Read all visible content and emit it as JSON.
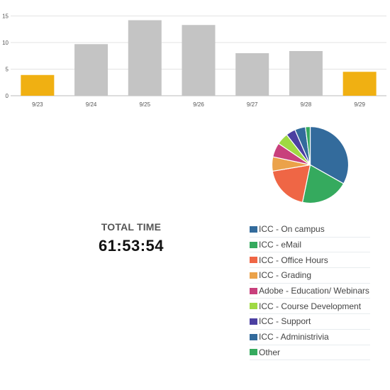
{
  "chart_data": [
    {
      "type": "bar",
      "categories": [
        "9/23",
        "9/24",
        "9/25",
        "9/26",
        "9/27",
        "9/28",
        "9/29"
      ],
      "values": [
        3.9,
        9.7,
        14.2,
        13.3,
        8.0,
        8.4,
        4.5
      ],
      "highlight": [
        true,
        false,
        false,
        false,
        false,
        false,
        true
      ],
      "colors": {
        "default": "#c4c4c4",
        "highlight": "#f0b012"
      },
      "ylim": [
        0,
        16
      ],
      "yticks": [
        "0",
        "5",
        "10",
        "15"
      ],
      "grid": true
    },
    {
      "type": "pie",
      "slices": [
        {
          "label": "ICC - On campus",
          "value": 33,
          "color": "#336b9c"
        },
        {
          "label": "ICC - eMail",
          "value": 20,
          "color": "#35aa5e"
        },
        {
          "label": "ICC - Office Hours",
          "value": 19,
          "color": "#ef6645"
        },
        {
          "label": "ICC - Grading",
          "value": 6,
          "color": "#eba24a"
        },
        {
          "label": "Adobe - Education/ Webinars",
          "value": 6,
          "color": "#c8407c"
        },
        {
          "label": "ICC - Course Development",
          "value": 5,
          "color": "#9fd943"
        },
        {
          "label": "ICC - Support",
          "value": 4,
          "color": "#4b3fa1"
        },
        {
          "label": "ICC - Administrivia",
          "value": 4.5,
          "color": "#336b9c"
        },
        {
          "label": "Other",
          "value": 2,
          "color": "#35aa5e"
        }
      ]
    }
  ],
  "total": {
    "label": "TOTAL TIME",
    "value": "61:53:54"
  }
}
